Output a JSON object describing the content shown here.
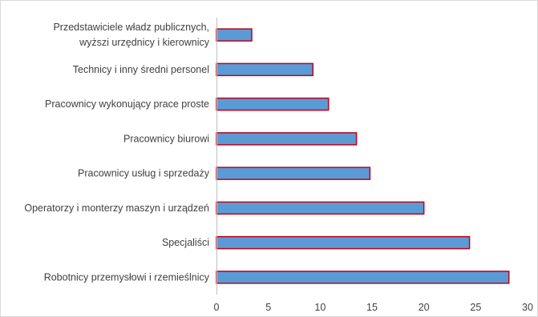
{
  "chart_data": {
    "type": "bar",
    "orientation": "horizontal",
    "categories": [
      [
        "Robotnicy przemysłowi i rzemieślnicy"
      ],
      [
        "Specjaliści"
      ],
      [
        "Operatorzy i monterzy maszyn i urządzeń"
      ],
      [
        "Pracownicy usług i sprzedaży"
      ],
      [
        "Pracownicy biurowi"
      ],
      [
        "Pracownicy wykonujący prace proste"
      ],
      [
        "Technicy i inny średni personel"
      ],
      [
        "Przedstawiciele władz publicznych,",
        "wyższi urzędnicy i kierownicy"
      ]
    ],
    "values": [
      28.2,
      24.4,
      20.0,
      14.8,
      13.5,
      10.8,
      9.3,
      3.4
    ],
    "xlim": [
      0,
      30
    ],
    "xticks": [
      0,
      5,
      10,
      15,
      20,
      25,
      30
    ],
    "bar_color": "#5b9bd5",
    "bar_border_color": "#c0001a",
    "grid": false,
    "legend": "none"
  }
}
